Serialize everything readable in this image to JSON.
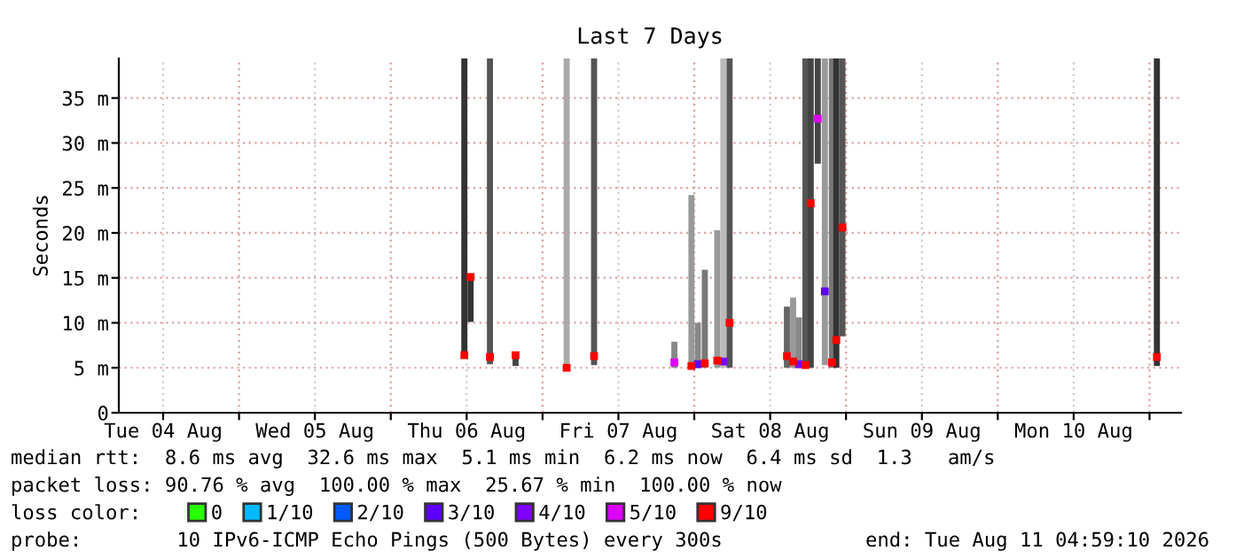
{
  "chart_data": {
    "type": "bar",
    "title": "Last 7 Days",
    "ylabel": "Seconds",
    "x": [
      "2026-08-06T11:38",
      "2026-08-06T12:37",
      "2026-08-06T15:41",
      "2026-08-06T19:44",
      "2026-08-07T03:49",
      "2026-08-07T08:09",
      "2026-08-07T20:51",
      "2026-08-07T23:33",
      "2026-08-08T00:34",
      "2026-08-08T01:40",
      "2026-08-08T03:38",
      "2026-08-08T04:36",
      "2026-08-08T05:35",
      "2026-08-08T14:39",
      "2026-08-08T15:38",
      "2026-08-08T16:33",
      "2026-08-08T17:35",
      "2026-08-08T18:25",
      "2026-08-08T19:32",
      "2026-08-08T20:39",
      "2026-08-08T21:46",
      "2026-08-08T22:28",
      "2026-08-08T23:26",
      "2026-08-11T01:10"
    ],
    "base": [
      6.2,
      10.1,
      5.4,
      5.2,
      5.0,
      5.3,
      5.0,
      5.0,
      5.0,
      5.0,
      5.0,
      5.0,
      5.0,
      5.0,
      5.0,
      5.0,
      5.0,
      5.0,
      27.7,
      5.3,
      5.0,
      5.0,
      8.5,
      5.2
    ],
    "values": [
      33.2,
      5.0,
      34.0,
      1.2,
      34.4,
      34.1,
      2.9,
      19.2,
      5.0,
      10.9,
      15.3,
      34.4,
      34.4,
      6.8,
      7.8,
      5.6,
      34.4,
      34.4,
      11.7,
      34.1,
      34.4,
      34.4,
      30.9,
      34.2
    ],
    "colors": [
      "#333333",
      "#333333",
      "#555555",
      "#444444",
      "#aaaaaa",
      "#555555",
      "#888888",
      "#999999",
      "#888888",
      "#777777",
      "#999999",
      "#bbbbbb",
      "#555555",
      "#666666",
      "#999999",
      "#888888",
      "#555555",
      "#444444",
      "#444444",
      "#999999",
      "#777777",
      "#333333",
      "#555555",
      "#333333"
    ],
    "series": [
      {
        "type": "scatter",
        "name": "0",
        "color": "#26ff00",
        "values": [
          null,
          null,
          null,
          null,
          null,
          null,
          null,
          null,
          null,
          null,
          null,
          null,
          null,
          null,
          null,
          null,
          null,
          null,
          null,
          null,
          null,
          null,
          null,
          null
        ]
      },
      {
        "type": "scatter",
        "name": "1/10",
        "color": "#00b8ff",
        "values": [
          null,
          null,
          null,
          null,
          null,
          null,
          null,
          null,
          null,
          null,
          null,
          null,
          null,
          null,
          null,
          null,
          null,
          null,
          null,
          null,
          null,
          null,
          null,
          null
        ]
      },
      {
        "type": "scatter",
        "name": "2/10",
        "color": "#0059ff",
        "values": [
          null,
          null,
          null,
          null,
          null,
          null,
          null,
          null,
          null,
          null,
          null,
          null,
          null,
          null,
          null,
          null,
          null,
          null,
          null,
          null,
          null,
          null,
          null,
          null
        ]
      },
      {
        "type": "scatter",
        "name": "3/10",
        "color": "#5e00ff",
        "x": [
          "2026-08-08T00:34",
          "2026-08-08T20:39"
        ],
        "values": [
          5.4,
          13.5
        ]
      },
      {
        "type": "scatter",
        "name": "4/10",
        "color": "#7e00ff",
        "x": [
          "2026-08-08T04:36",
          "2026-08-08T16:33"
        ],
        "values": [
          5.7,
          5.4
        ]
      },
      {
        "type": "scatter",
        "name": "5/10",
        "color": "#dd00ff",
        "x": [
          "2026-08-07T20:51",
          "2026-08-08T19:32"
        ],
        "values": [
          5.6,
          32.7
        ]
      },
      {
        "type": "scatter",
        "name": "9/10",
        "color": "#ff0000",
        "x": [
          "2026-08-06T11:38",
          "2026-08-06T12:37",
          "2026-08-06T15:41",
          "2026-08-06T19:44",
          "2026-08-07T03:49",
          "2026-08-07T08:09",
          "2026-08-07T23:33",
          "2026-08-08T01:40",
          "2026-08-08T03:38",
          "2026-08-08T05:35",
          "2026-08-08T14:39",
          "2026-08-08T15:38",
          "2026-08-08T17:35",
          "2026-08-08T18:25",
          "2026-08-08T21:46",
          "2026-08-08T22:28",
          "2026-08-08T23:26",
          "2026-08-11T01:10"
        ],
        "values": [
          6.4,
          15.1,
          6.2,
          6.4,
          5.0,
          6.3,
          5.2,
          5.5,
          5.8,
          10.0,
          6.3,
          5.7,
          5.3,
          23.3,
          5.6,
          8.1,
          20.6,
          6.2
        ]
      }
    ],
    "marker": "square",
    "legend": "bottom",
    "legend_title": "loss color:",
    "grid": true,
    "xlim": [
      "2026-08-04T04:59",
      "2026-08-11T04:59"
    ],
    "xticks": [
      {
        "value": "2026-08-04T12:00",
        "label": "Tue 04 Aug"
      },
      {
        "value": "2026-08-05T00:00",
        "label": null
      },
      {
        "value": "2026-08-05T12:00",
        "label": "Wed 05 Aug"
      },
      {
        "value": "2026-08-06T00:00",
        "label": null
      },
      {
        "value": "2026-08-06T12:00",
        "label": "Thu 06 Aug"
      },
      {
        "value": "2026-08-07T00:00",
        "label": null
      },
      {
        "value": "2026-08-07T12:00",
        "label": "Fri 07 Aug"
      },
      {
        "value": "2026-08-08T00:00",
        "label": null
      },
      {
        "value": "2026-08-08T12:00",
        "label": "Sat 08 Aug"
      },
      {
        "value": "2026-08-09T00:00",
        "label": null
      },
      {
        "value": "2026-08-09T12:00",
        "label": "Sun 09 Aug"
      },
      {
        "value": "2026-08-10T00:00",
        "label": null
      },
      {
        "value": "2026-08-10T12:00",
        "label": "Mon 10 Aug"
      },
      {
        "value": "2026-08-11T00:00",
        "label": null
      }
    ],
    "ylim": [
      0,
      39.4
    ],
    "yticks": [
      0,
      {
        "value": 5,
        "label": "5 m"
      },
      {
        "value": 10,
        "label": "10 m"
      },
      {
        "value": 15,
        "label": "15 m"
      },
      {
        "value": 20,
        "label": "20 m"
      },
      {
        "value": 25,
        "label": "25 m"
      },
      {
        "value": 30,
        "label": "30 m"
      },
      {
        "value": 35,
        "label": "35 m"
      }
    ],
    "annotations": [
      "median rtt:  8.6 ms avg  32.6 ms max  5.1 ms min  6.2 ms now  6.4 ms sd  1.3   am/s",
      "packet loss: 90.76 % avg  100.00 % max  25.67 % min  100.00 % now",
      "probe:        10 IPv6-ICMP Echo Pings (500 Bytes) every 300s",
      "end: Tue Aug 11 04:59:10 2026"
    ]
  }
}
